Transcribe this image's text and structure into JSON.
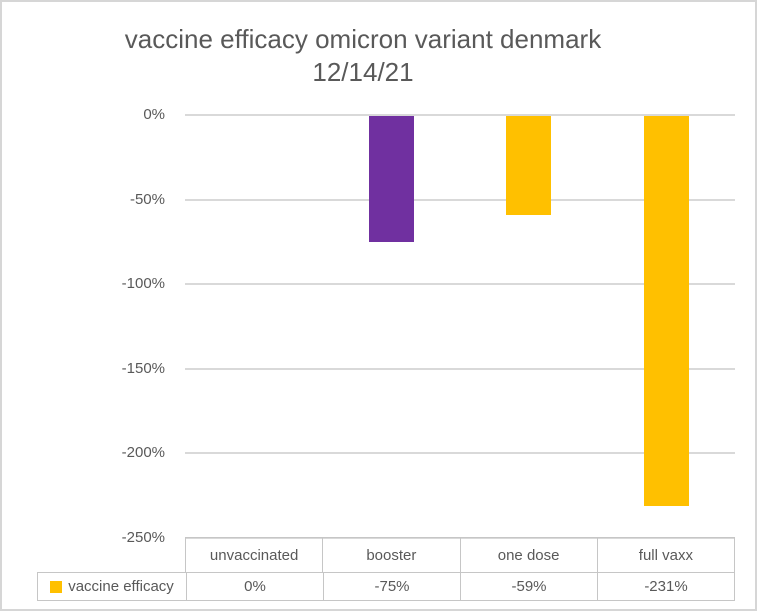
{
  "chart_data": {
    "type": "bar",
    "title": "vaccine efficacy omicron variant denmark",
    "subtitle": "12/14/21",
    "categories": [
      "unvaccinated",
      "booster",
      "one dose",
      "full vaxx"
    ],
    "series": [
      {
        "name": "vaccine efficacy",
        "values": [
          0,
          -75,
          -59,
          -231
        ],
        "value_labels": [
          "0%",
          "-75%",
          "-59%",
          "-231%"
        ],
        "bar_colors": [
          "#FFC000",
          "#7030A0",
          "#FFC000",
          "#FFC000"
        ],
        "legend_color": "#FFC000"
      }
    ],
    "xlabel": "",
    "ylabel": "",
    "ylim": [
      -250,
      0
    ],
    "y_ticks": [
      0,
      -50,
      -100,
      -150,
      -200,
      -250
    ],
    "y_tick_labels": [
      "0%",
      "-50%",
      "-100%",
      "-150%",
      "-200%",
      "-250%"
    ],
    "grid": "horizontal",
    "grid_color": "#d9d9d9",
    "text_color": "#595959",
    "table_border_color": "#c6c6c6",
    "legend_position": "data-table-left",
    "data_table": true
  }
}
